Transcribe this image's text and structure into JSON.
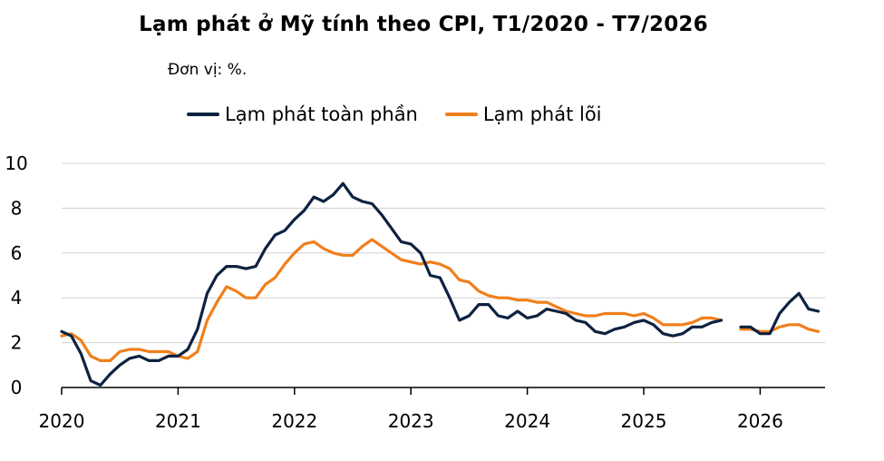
{
  "chart_data": {
    "type": "line",
    "title": "Lạm phát ở Mỹ tính theo CPI, T1/2020 - T7/2026",
    "unit_note": "Đơn vị: %.",
    "ylim": [
      0,
      10
    ],
    "y_ticks": [
      "0",
      "2",
      "4",
      "6",
      "8",
      "10"
    ],
    "x_ticks": [
      "2020",
      "2021",
      "2022",
      "2023",
      "2024",
      "2025",
      "2026"
    ],
    "grid": true,
    "legend_position": "top",
    "x_dates": [
      "2020-01",
      "2020-02",
      "2020-03",
      "2020-04",
      "2020-05",
      "2020-06",
      "2020-07",
      "2020-08",
      "2020-09",
      "2020-10",
      "2020-11",
      "2020-12",
      "2021-01",
      "2021-02",
      "2021-03",
      "2021-04",
      "2021-05",
      "2021-06",
      "2021-07",
      "2021-08",
      "2021-09",
      "2021-10",
      "2021-11",
      "2021-12",
      "2022-01",
      "2022-02",
      "2022-03",
      "2022-04",
      "2022-05",
      "2022-06",
      "2022-07",
      "2022-08",
      "2022-09",
      "2022-10",
      "2022-11",
      "2022-12",
      "2023-01",
      "2023-02",
      "2023-03",
      "2023-04",
      "2023-05",
      "2023-06",
      "2023-07",
      "2023-08",
      "2023-09",
      "2023-10",
      "2023-11",
      "2023-12",
      "2024-01",
      "2024-02",
      "2024-03",
      "2024-04",
      "2024-05",
      "2024-06",
      "2024-07",
      "2024-08",
      "2024-09",
      "2024-10",
      "2024-11",
      "2024-12",
      "2025-01",
      "2025-02",
      "2025-03",
      "2025-04",
      "2025-05",
      "2025-06",
      "2025-07",
      "2025-08",
      "2025-09",
      "2025-10",
      "2025-11",
      "2025-12",
      "2026-01",
      "2026-02",
      "2026-03",
      "2026-04",
      "2026-05",
      "2026-06",
      "2026-07"
    ],
    "series": [
      {
        "name": "Lạm phát toàn phần",
        "color": "#0d2240",
        "values": [
          2.5,
          2.3,
          1.5,
          0.3,
          0.1,
          0.6,
          1.0,
          1.3,
          1.4,
          1.2,
          1.2,
          1.4,
          1.4,
          1.7,
          2.6,
          4.2,
          5.0,
          5.4,
          5.4,
          5.3,
          5.4,
          6.2,
          6.8,
          7.0,
          7.5,
          7.9,
          8.5,
          8.3,
          8.6,
          9.1,
          8.5,
          8.3,
          8.2,
          7.7,
          7.1,
          6.5,
          6.4,
          6.0,
          5.0,
          4.9,
          4.0,
          3.0,
          3.2,
          3.7,
          3.7,
          3.2,
          3.1,
          3.4,
          3.1,
          3.2,
          3.5,
          3.4,
          3.3,
          3.0,
          2.9,
          2.5,
          2.4,
          2.6,
          2.7,
          2.9,
          3.0,
          2.8,
          2.4,
          2.3,
          2.4,
          2.7,
          2.7,
          2.9,
          3.0,
          null,
          2.7,
          2.7,
          2.4,
          2.4,
          3.3,
          3.8,
          4.2,
          3.5,
          3.4
        ]
      },
      {
        "name": "Lạm phát lõi",
        "color": "#f07f1c",
        "values": [
          2.3,
          2.4,
          2.1,
          1.4,
          1.2,
          1.2,
          1.6,
          1.7,
          1.7,
          1.6,
          1.6,
          1.6,
          1.4,
          1.3,
          1.6,
          3.0,
          3.8,
          4.5,
          4.3,
          4.0,
          4.0,
          4.6,
          4.9,
          5.5,
          6.0,
          6.4,
          6.5,
          6.2,
          6.0,
          5.9,
          5.9,
          6.3,
          6.6,
          6.3,
          6.0,
          5.7,
          5.6,
          5.5,
          5.6,
          5.5,
          5.3,
          4.8,
          4.7,
          4.3,
          4.1,
          4.0,
          4.0,
          3.9,
          3.9,
          3.8,
          3.8,
          3.6,
          3.4,
          3.3,
          3.2,
          3.2,
          3.3,
          3.3,
          3.3,
          3.2,
          3.3,
          3.1,
          2.8,
          2.8,
          2.8,
          2.9,
          3.1,
          3.1,
          3.0,
          null,
          2.6,
          2.6,
          2.5,
          2.5,
          2.7,
          2.8,
          2.8,
          2.6,
          2.5
        ]
      }
    ]
  }
}
